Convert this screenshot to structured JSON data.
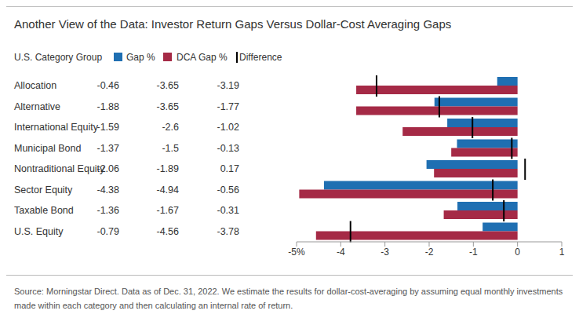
{
  "chart_data": {
    "type": "bar",
    "orientation": "horizontal",
    "title": "Another View of the Data: Investor Return Gaps Versus Dollar-Cost Averaging Gaps",
    "ylabel": "U.S. Category Group",
    "categories": [
      "Allocation",
      "Alternative",
      "International Equity",
      "Municipal Bond",
      "Nontraditional Equity",
      "Sector Equity",
      "Taxable Bond",
      "U.S. Equity"
    ],
    "series": [
      {
        "name": "Gap %",
        "color": "#1f6fb2",
        "values": [
          -0.46,
          -1.88,
          -1.59,
          -1.37,
          -2.06,
          -4.38,
          -1.36,
          -0.79
        ]
      },
      {
        "name": "DCA Gap %",
        "color": "#a52a46",
        "values": [
          -3.65,
          -3.65,
          -2.6,
          -1.5,
          -1.89,
          -4.94,
          -1.67,
          -4.56
        ]
      },
      {
        "name": "Difference",
        "color": "#000000",
        "type": "marker",
        "values": [
          -3.19,
          -1.77,
          -1.02,
          -0.13,
          0.17,
          -0.56,
          -0.31,
          -3.78
        ]
      }
    ],
    "xlim": [
      -5,
      1
    ],
    "xticks": [
      {
        "value": -5,
        "label": "-5%"
      },
      -4,
      -3,
      -2,
      -1,
      0,
      1
    ],
    "legend": "top",
    "footnote": "Source: Morningstar Direct. Data as of Dec. 31, 2022. We estimate the results for dollar-cost-averaging by assuming equal monthly investments made within each category and then calculating an internal rate of return."
  }
}
